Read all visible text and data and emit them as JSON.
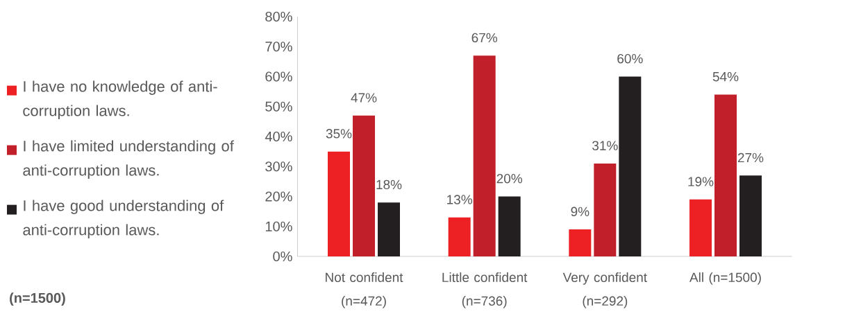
{
  "chart_data": {
    "type": "bar",
    "categories": [
      "Not confident (n=472)",
      "Little confident (n=736)",
      "Very confident (n=292)",
      "All (n=1500)"
    ],
    "series": [
      {
        "name": "I have no knowledge of anti-corruption laws.",
        "color": "#ed2024",
        "values": [
          35,
          13,
          9,
          19
        ],
        "value_labels": [
          "35%",
          "13%",
          "9%",
          "19%"
        ]
      },
      {
        "name": "I have limited understanding of anti-corruption laws.",
        "color": "#c1202a",
        "values": [
          47,
          67,
          31,
          54
        ],
        "value_labels": [
          "47%",
          "67%",
          "31%",
          "54%"
        ]
      },
      {
        "name": "I have good understanding of anti-corruption laws.",
        "color": "#231f20",
        "values": [
          18,
          20,
          60,
          27
        ],
        "value_labels": [
          "18%",
          "20%",
          "60%",
          "27%"
        ]
      }
    ],
    "ylim": [
      0,
      80
    ],
    "yticks": [
      {
        "value": 0,
        "label": "0%"
      },
      {
        "value": 10,
        "label": "10%"
      },
      {
        "value": 20,
        "label": "20%"
      },
      {
        "value": 30,
        "label": "30%"
      },
      {
        "value": 40,
        "label": "40%"
      },
      {
        "value": 50,
        "label": "50%"
      },
      {
        "value": 60,
        "label": "60%"
      },
      {
        "value": 70,
        "label": "70%"
      },
      {
        "value": 80,
        "label": "80%"
      }
    ],
    "grid": false,
    "legend": "left",
    "annotations": [
      "(n=1500)"
    ]
  }
}
